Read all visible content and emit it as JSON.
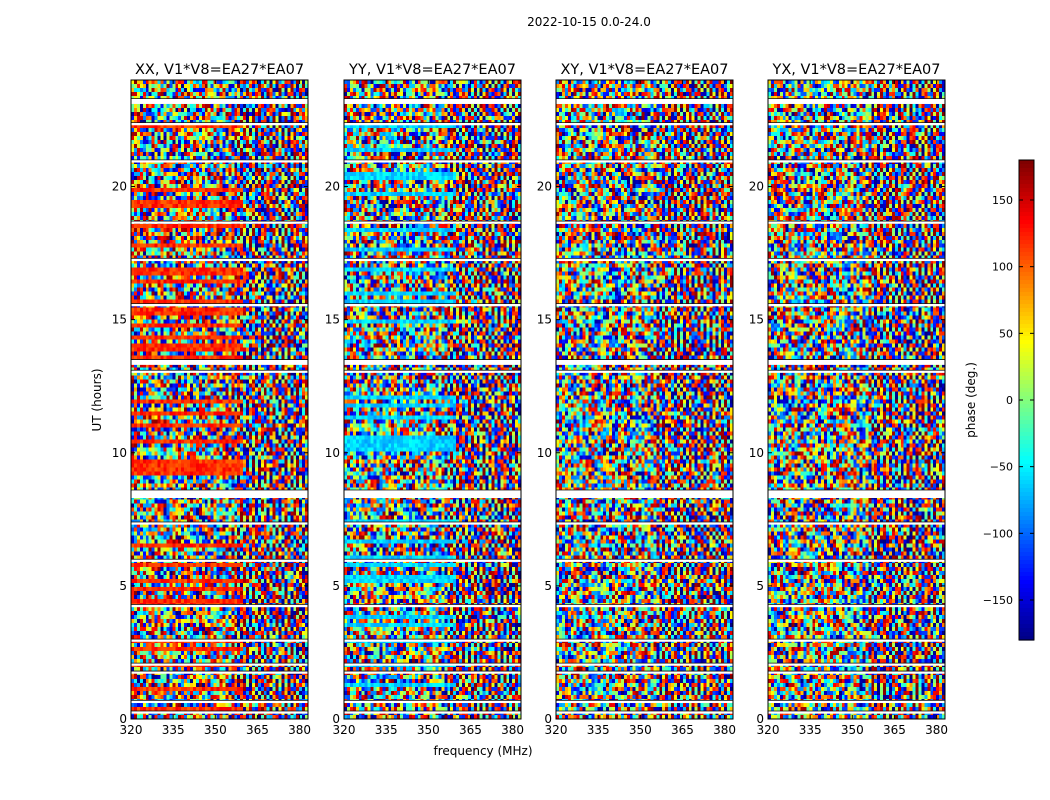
{
  "suptitle": "2022-10-15 0.0-24.0",
  "chart_data": {
    "type": "heatmap",
    "description_of_values": "phase in degrees, colormap jet",
    "xlabel": "frequency (MHz)",
    "ylabel": "UT (hours)",
    "xlim": [
      320,
      383
    ],
    "ylim": [
      0,
      24
    ],
    "xticks": [
      320,
      335,
      350,
      365,
      380
    ],
    "xtick_labels": [
      "320",
      "335",
      "350",
      "365",
      "380"
    ],
    "yticks": [
      0,
      5,
      10,
      15,
      20
    ],
    "ytick_labels": [
      "0",
      "5",
      "10",
      "15",
      "20"
    ],
    "panels": [
      {
        "title": "XX, V1*V8=EA27*EA07",
        "bias_color_phase": 120
      },
      {
        "title": "YY, V1*V8=EA27*EA07",
        "bias_color_phase": -60
      },
      {
        "title": "XY, V1*V8=EA27*EA07",
        "bias_color_phase": null
      },
      {
        "title": "YX, V1*V8=EA27*EA07",
        "bias_color_phase": null
      }
    ],
    "gap_bands_hours": [
      [
        0.2,
        0.3
      ],
      [
        0.6,
        0.7
      ],
      [
        1.7,
        1.8
      ],
      [
        2.0,
        2.1
      ],
      [
        2.9,
        3.0
      ],
      [
        4.2,
        4.3
      ],
      [
        5.9,
        6.0
      ],
      [
        7.3,
        7.4
      ],
      [
        8.3,
        8.6
      ],
      [
        13.3,
        13.5
      ],
      [
        13.0,
        13.1
      ],
      [
        15.5,
        15.6
      ],
      [
        17.2,
        17.3
      ],
      [
        18.6,
        18.7
      ],
      [
        20.9,
        21.0
      ],
      [
        22.3,
        22.4
      ],
      [
        23.1,
        23.3
      ]
    ],
    "colorbar": {
      "label": "phase (deg.)",
      "range": [
        -180,
        180
      ],
      "ticks": [
        150,
        100,
        50,
        0,
        -50,
        -100,
        -150
      ],
      "tick_labels": [
        "150",
        "100",
        "50",
        "0",
        "−50",
        "−100",
        "−150"
      ]
    }
  }
}
